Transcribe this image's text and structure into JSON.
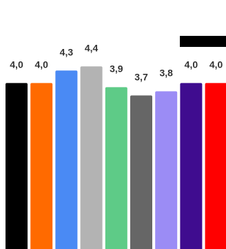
{
  "chart_data": {
    "type": "bar",
    "categories": [
      "",
      "",
      "",
      "",
      "",
      "",
      "",
      "",
      ""
    ],
    "values": [
      4.0,
      4.0,
      4.3,
      4.4,
      3.9,
      3.7,
      3.8,
      4.0,
      4.0
    ],
    "value_labels": [
      "4,0",
      "4,0",
      "4,3",
      "4,4",
      "3,9",
      "3,7",
      "3,8",
      "4,0",
      "4,0"
    ],
    "bar_colors": [
      "#000000",
      "#ff6a00",
      "#4a8af4",
      "#b3b3b3",
      "#5ecb87",
      "#666666",
      "#9b8cf5",
      "#3f0c8f",
      "#ff0000"
    ],
    "ylim": [
      0,
      6.0
    ],
    "grid": false,
    "legend_marker_color": "#000000"
  }
}
